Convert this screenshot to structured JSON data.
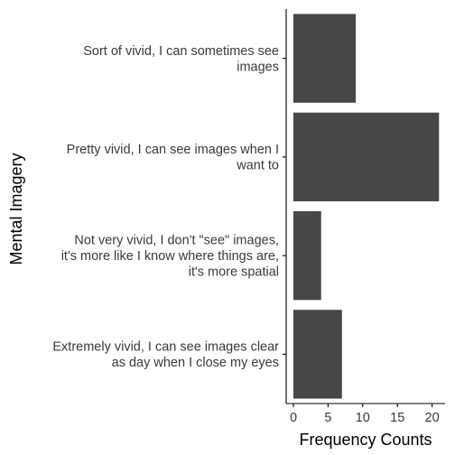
{
  "chart_data": {
    "type": "bar",
    "orientation": "horizontal",
    "categories": [
      [
        "Extremely vivid, I can see images clear",
        "as day when I close my eyes"
      ],
      [
        "Not very vivid, I don't \"see\" images,",
        "it's more like I know where things are,",
        "it's more spatial"
      ],
      [
        "Pretty vivid, I can see images when I",
        "want to"
      ],
      [
        "Sort of vivid, I can sometimes see",
        "images"
      ]
    ],
    "values": [
      7,
      4,
      21,
      9
    ],
    "xlabel": "Frequency Counts",
    "ylabel": "Mental Imagery",
    "xlim": [
      0,
      22
    ],
    "xticks": [
      0,
      5,
      10,
      15,
      20
    ],
    "grid": false,
    "colors": {
      "bar": "#474747",
      "axis": "#000000",
      "text": "#3a3a3a"
    }
  }
}
